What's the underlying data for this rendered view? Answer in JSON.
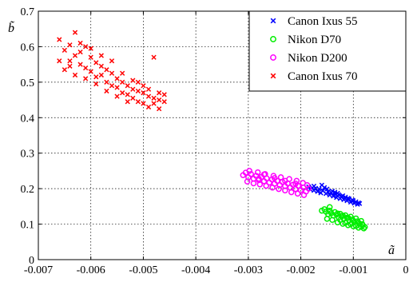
{
  "chart_data": {
    "type": "scatter",
    "title": "",
    "xlabel": "ã",
    "ylabel": "b̃",
    "xlim": [
      -0.007,
      0
    ],
    "ylim": [
      0,
      0.7
    ],
    "xticks": [
      -0.007,
      -0.006,
      -0.005,
      -0.004,
      -0.003,
      -0.002,
      -0.001,
      0
    ],
    "xtick_labels": [
      "-0.007",
      "-0.006",
      "-0.005",
      "-0.004",
      "-0.003",
      "-0.002",
      "-0.001",
      "0"
    ],
    "yticks": [
      0,
      0.1,
      0.2,
      0.3,
      0.4,
      0.5,
      0.6,
      0.7
    ],
    "ytick_labels": [
      "0",
      "0.1",
      "0.2",
      "0.3",
      "0.4",
      "0.5",
      "0.6",
      "0.7"
    ],
    "grid": true,
    "legend_position": "top-right",
    "series": [
      {
        "name": "Canon Ixus 55",
        "marker": "x",
        "color": "#0000ff",
        "points": [
          [
            -0.00185,
            0.205
          ],
          [
            -0.00182,
            0.198
          ],
          [
            -0.00178,
            0.202
          ],
          [
            -0.00175,
            0.195
          ],
          [
            -0.00172,
            0.201
          ],
          [
            -0.00168,
            0.192
          ],
          [
            -0.00165,
            0.199
          ],
          [
            -0.00162,
            0.188
          ],
          [
            -0.00158,
            0.194
          ],
          [
            -0.00155,
            0.203
          ],
          [
            -0.00152,
            0.186
          ],
          [
            -0.00148,
            0.191
          ],
          [
            -0.00145,
            0.182
          ],
          [
            -0.00142,
            0.189
          ],
          [
            -0.00138,
            0.179
          ],
          [
            -0.00135,
            0.186
          ],
          [
            -0.00132,
            0.175
          ],
          [
            -0.00128,
            0.183
          ],
          [
            -0.00125,
            0.172
          ],
          [
            -0.00122,
            0.178
          ],
          [
            -0.00118,
            0.169
          ],
          [
            -0.00115,
            0.176
          ],
          [
            -0.00112,
            0.166
          ],
          [
            -0.00108,
            0.171
          ],
          [
            -0.00105,
            0.162
          ],
          [
            -0.00102,
            0.168
          ],
          [
            -0.00098,
            0.159
          ],
          [
            -0.00095,
            0.163
          ],
          [
            -0.00092,
            0.156
          ],
          [
            -0.0009,
            0.16
          ],
          [
            -0.0016,
            0.21
          ],
          [
            -0.0015,
            0.199
          ],
          [
            -0.0014,
            0.193
          ],
          [
            -0.0013,
            0.187
          ],
          [
            -0.0012,
            0.18
          ],
          [
            -0.0011,
            0.173
          ],
          [
            -0.001,
            0.166
          ],
          [
            -0.00088,
            0.158
          ],
          [
            -0.00175,
            0.207
          ],
          [
            -0.00135,
            0.19
          ]
        ]
      },
      {
        "name": "Nikon D70",
        "marker": "o",
        "color": "#00ee00",
        "points": [
          [
            -0.00155,
            0.142
          ],
          [
            -0.00152,
            0.135
          ],
          [
            -0.00148,
            0.128
          ],
          [
            -0.00145,
            0.138
          ],
          [
            -0.00142,
            0.131
          ],
          [
            -0.00138,
            0.124
          ],
          [
            -0.00135,
            0.134
          ],
          [
            -0.00132,
            0.127
          ],
          [
            -0.00128,
            0.119
          ],
          [
            -0.00125,
            0.129
          ],
          [
            -0.00122,
            0.122
          ],
          [
            -0.00118,
            0.115
          ],
          [
            -0.00115,
            0.125
          ],
          [
            -0.00112,
            0.118
          ],
          [
            -0.00108,
            0.111
          ],
          [
            -0.00105,
            0.121
          ],
          [
            -0.00102,
            0.113
          ],
          [
            -0.00098,
            0.106
          ],
          [
            -0.00095,
            0.116
          ],
          [
            -0.00092,
            0.108
          ],
          [
            -0.00088,
            0.101
          ],
          [
            -0.00085,
            0.109
          ],
          [
            -0.00082,
            0.097
          ],
          [
            -0.00078,
            0.092
          ],
          [
            -0.0015,
            0.115
          ],
          [
            -0.0014,
            0.112
          ],
          [
            -0.0013,
            0.105
          ],
          [
            -0.0012,
            0.101
          ],
          [
            -0.0011,
            0.097
          ],
          [
            -0.001,
            0.094
          ],
          [
            -0.0009,
            0.09
          ],
          [
            -0.0008,
            0.088
          ],
          [
            -0.0016,
            0.138
          ],
          [
            -0.00145,
            0.148
          ],
          [
            -0.00125,
            0.112
          ],
          [
            -0.00115,
            0.104
          ],
          [
            -0.00105,
            0.1
          ],
          [
            -0.00095,
            0.095
          ],
          [
            -0.00085,
            0.093
          ],
          [
            -0.0013,
            0.13
          ],
          [
            -0.0012,
            0.124
          ],
          [
            -0.0011,
            0.118
          ],
          [
            -0.001,
            0.11
          ],
          [
            -0.0009,
            0.104
          ],
          [
            -0.00083,
            0.1
          ]
        ]
      },
      {
        "name": "Nikon D200",
        "marker": "o",
        "color": "#ff00ff",
        "points": [
          [
            -0.0031,
            0.238
          ],
          [
            -0.00305,
            0.245
          ],
          [
            -0.003,
            0.232
          ],
          [
            -0.00295,
            0.241
          ],
          [
            -0.0029,
            0.228
          ],
          [
            -0.00285,
            0.236
          ],
          [
            -0.0028,
            0.224
          ],
          [
            -0.00275,
            0.233
          ],
          [
            -0.0027,
            0.221
          ],
          [
            -0.00265,
            0.229
          ],
          [
            -0.0026,
            0.217
          ],
          [
            -0.00255,
            0.226
          ],
          [
            -0.0025,
            0.214
          ],
          [
            -0.00245,
            0.222
          ],
          [
            -0.0024,
            0.21
          ],
          [
            -0.00235,
            0.219
          ],
          [
            -0.0023,
            0.207
          ],
          [
            -0.00225,
            0.215
          ],
          [
            -0.0022,
            0.203
          ],
          [
            -0.00215,
            0.211
          ],
          [
            -0.0021,
            0.199
          ],
          [
            -0.00205,
            0.208
          ],
          [
            -0.002,
            0.196
          ],
          [
            -0.00195,
            0.203
          ],
          [
            -0.0019,
            0.192
          ],
          [
            -0.00185,
            0.2
          ],
          [
            -0.00302,
            0.22
          ],
          [
            -0.0029,
            0.215
          ],
          [
            -0.00278,
            0.212
          ],
          [
            -0.00266,
            0.208
          ],
          [
            -0.00254,
            0.203
          ],
          [
            -0.00242,
            0.199
          ],
          [
            -0.0023,
            0.195
          ],
          [
            -0.00218,
            0.19
          ],
          [
            -0.00206,
            0.186
          ],
          [
            -0.00194,
            0.182
          ],
          [
            -0.00298,
            0.25
          ],
          [
            -0.00282,
            0.246
          ],
          [
            -0.00268,
            0.241
          ],
          [
            -0.00252,
            0.236
          ],
          [
            -0.00238,
            0.232
          ],
          [
            -0.00222,
            0.227
          ],
          [
            -0.00208,
            0.222
          ],
          [
            -0.00196,
            0.216
          ],
          [
            -0.00188,
            0.21
          ],
          [
            -0.0027,
            0.24
          ],
          [
            -0.0025,
            0.23
          ],
          [
            -0.0023,
            0.222
          ],
          [
            -0.0021,
            0.214
          ],
          [
            -0.0028,
            0.228
          ]
        ]
      },
      {
        "name": "Canon Ixus 70",
        "marker": "x",
        "color": "#ff0000",
        "points": [
          [
            -0.0066,
            0.62
          ],
          [
            -0.0065,
            0.59
          ],
          [
            -0.0064,
            0.605
          ],
          [
            -0.0064,
            0.56
          ],
          [
            -0.0063,
            0.64
          ],
          [
            -0.0063,
            0.575
          ],
          [
            -0.0062,
            0.55
          ],
          [
            -0.0062,
            0.585
          ],
          [
            -0.0061,
            0.6
          ],
          [
            -0.0061,
            0.54
          ],
          [
            -0.006,
            0.57
          ],
          [
            -0.006,
            0.53
          ],
          [
            -0.0059,
            0.555
          ],
          [
            -0.0059,
            0.515
          ],
          [
            -0.0058,
            0.545
          ],
          [
            -0.0058,
            0.52
          ],
          [
            -0.0057,
            0.535
          ],
          [
            -0.0057,
            0.5
          ],
          [
            -0.0056,
            0.525
          ],
          [
            -0.0056,
            0.49
          ],
          [
            -0.0055,
            0.51
          ],
          [
            -0.0055,
            0.485
          ],
          [
            -0.0054,
            0.5
          ],
          [
            -0.0054,
            0.47
          ],
          [
            -0.0053,
            0.49
          ],
          [
            -0.0053,
            0.465
          ],
          [
            -0.0052,
            0.48
          ],
          [
            -0.0052,
            0.455
          ],
          [
            -0.0051,
            0.475
          ],
          [
            -0.0051,
            0.445
          ],
          [
            -0.005,
            0.47
          ],
          [
            -0.005,
            0.44
          ],
          [
            -0.0049,
            0.46
          ],
          [
            -0.0049,
            0.43
          ],
          [
            -0.0048,
            0.455
          ],
          [
            -0.0048,
            0.44
          ],
          [
            -0.0047,
            0.45
          ],
          [
            -0.0047,
            0.425
          ],
          [
            -0.0046,
            0.445
          ],
          [
            -0.0046,
            0.465
          ],
          [
            -0.0048,
            0.57
          ],
          [
            -0.0065,
            0.535
          ],
          [
            -0.0063,
            0.52
          ],
          [
            -0.0061,
            0.51
          ],
          [
            -0.0059,
            0.495
          ],
          [
            -0.0057,
            0.475
          ],
          [
            -0.0055,
            0.46
          ],
          [
            -0.0053,
            0.445
          ],
          [
            -0.0062,
            0.61
          ],
          [
            -0.006,
            0.595
          ],
          [
            -0.0058,
            0.575
          ],
          [
            -0.0056,
            0.56
          ],
          [
            -0.0054,
            0.525
          ],
          [
            -0.0052,
            0.505
          ],
          [
            -0.005,
            0.49
          ],
          [
            -0.0066,
            0.56
          ],
          [
            -0.0064,
            0.545
          ],
          [
            -0.0049,
            0.48
          ],
          [
            -0.0047,
            0.47
          ],
          [
            -0.0051,
            0.5
          ]
        ]
      }
    ]
  }
}
